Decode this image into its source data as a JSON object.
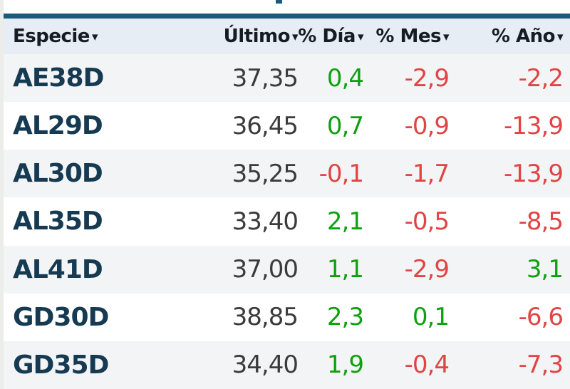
{
  "colors": {
    "bar": "#1c5a7d",
    "headerbg": "#e6edf4",
    "headertext": "#141c24",
    "stripe": "#f3f4f5",
    "ticker": "#163a52",
    "neutral": "#3b3b3b",
    "positive": "#0fa00f",
    "negative": "#e04444"
  },
  "table": {
    "columns": [
      {
        "key": "especie",
        "label": "Especie",
        "sort_arrow": "▾"
      },
      {
        "key": "ultimo",
        "label": "Último",
        "sort_arrow": "▾"
      },
      {
        "key": "dia",
        "label": "% Día",
        "sort_arrow": "▾"
      },
      {
        "key": "mes",
        "label": "% Mes",
        "sort_arrow": "▾"
      },
      {
        "key": "anio",
        "label": "% Año",
        "sort_arrow": "▾"
      }
    ],
    "rows": [
      {
        "especie": "AE38D",
        "ultimo": "37,35",
        "dia": "0,4",
        "mes": "-2,9",
        "anio": "-2,2"
      },
      {
        "especie": "AL29D",
        "ultimo": "36,45",
        "dia": "0,7",
        "mes": "-0,9",
        "anio": "-13,9"
      },
      {
        "especie": "AL30D",
        "ultimo": "35,25",
        "dia": "-0,1",
        "mes": "-1,7",
        "anio": "-13,9"
      },
      {
        "especie": "AL35D",
        "ultimo": "33,40",
        "dia": "2,1",
        "mes": "-0,5",
        "anio": "-8,5"
      },
      {
        "especie": "AL41D",
        "ultimo": "37,00",
        "dia": "1,1",
        "mes": "-2,9",
        "anio": "3,1"
      },
      {
        "especie": "GD30D",
        "ultimo": "38,85",
        "dia": "2,3",
        "mes": "0,1",
        "anio": "-6,6"
      },
      {
        "especie": "GD35D",
        "ultimo": "34,40",
        "dia": "1,9",
        "mes": "-0,4",
        "anio": "-7,3"
      }
    ]
  }
}
